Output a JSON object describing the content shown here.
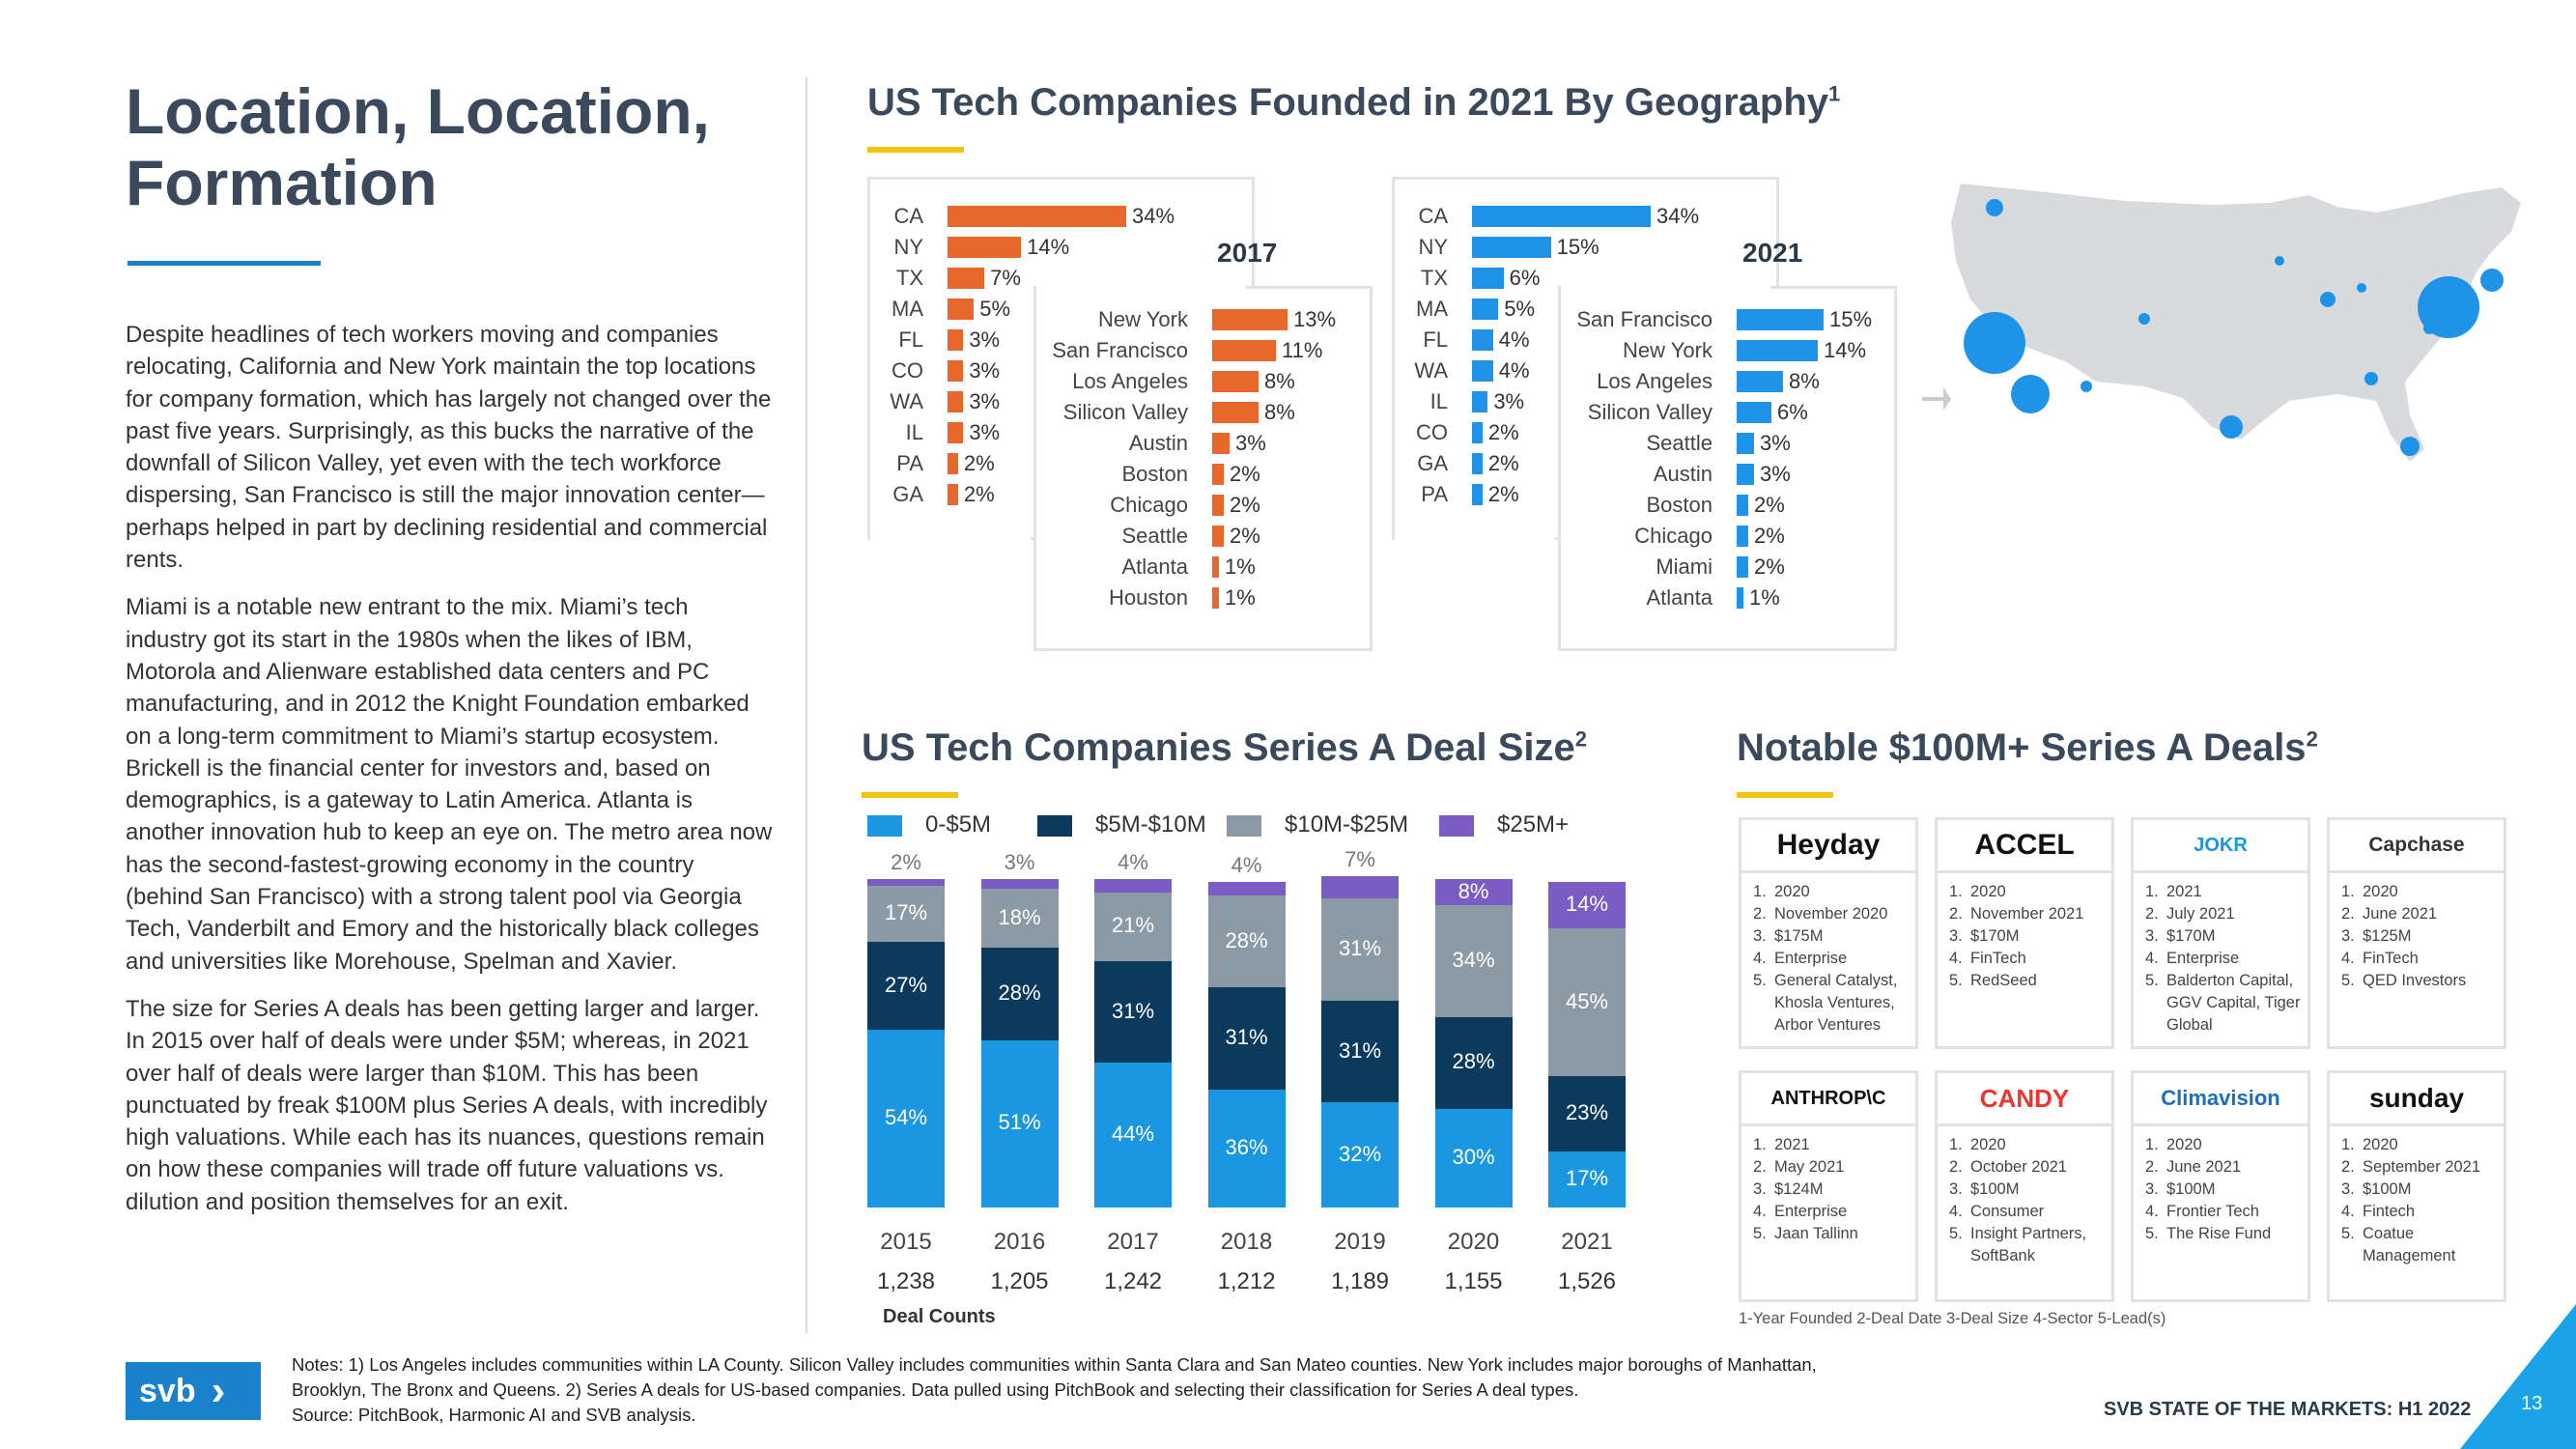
{
  "page": {
    "title": "Location, Location, Formation",
    "paragraphs": [
      "Despite headlines of tech workers moving and companies relocating, California and New York maintain the top locations for company formation, which has largely not changed over the past five years. Surprisingly, as this bucks the narrative of the downfall of Silicon Valley, yet even with the tech workforce dispersing, San Francisco is still the major innovation center—perhaps helped in part by declining residential and commercial rents.",
      "Miami is a notable new entrant to the mix. Miami’s tech industry got its start in the 1980s when the likes of IBM, Motorola and Alienware established data centers and PC manufacturing, and in 2012 the Knight Foundation embarked on a long-term commitment to Miami’s startup ecosystem. Brickell is the financial center for investors and, based on demographics, is a gateway to Latin America. Atlanta is another innovation hub to keep an eye on. The metro area now has the second-fastest-growing economy in the country (behind San Francisco) with a strong talent pool via Georgia Tech, Vanderbilt and Emory and the historically black colleges and universities like Morehouse, Spelman and Xavier.",
      "The size for Series A deals has been getting larger and larger. In 2015 over half of deals were under $5M; whereas, in 2021 over half of deals were larger than $10M. This has been punctuated by freak $100M plus Series A deals, with incredibly high valuations. While each has its nuances, questions remain on how these companies will trade off future valuations vs. dilution and position themselves for an exit."
    ],
    "footer_notes": [
      "Notes: 1) Los Angeles includes communities within LA County. Silicon Valley includes communities within Santa Clara and San Mateo counties. New York includes major boroughs of Manhattan,",
      "Brooklyn, The Bronx and Queens. 2) Series A deals for US-based companies. Data pulled using PitchBook and selecting their classification for Series A deal types.",
      "Source: PitchBook, Harmonic AI and SVB analysis."
    ],
    "brand": "SVB STATE OF THE MARKETS: H1 2022",
    "logo_text": "svb",
    "logo_chevron": "›",
    "page_number": "13"
  },
  "geo": {
    "title": "US Tech Companies Founded in 2021 By Geography",
    "title_sup": "1",
    "panels": [
      {
        "year": "2017",
        "color": "#e8672a",
        "states": [
          {
            "label": "CA",
            "value": 34,
            "text": "34%"
          },
          {
            "label": "NY",
            "value": 14,
            "text": "14%"
          },
          {
            "label": "TX",
            "value": 7,
            "text": "7%"
          },
          {
            "label": "MA",
            "value": 5,
            "text": "5%"
          },
          {
            "label": "FL",
            "value": 3,
            "text": "3%"
          },
          {
            "label": "CO",
            "value": 3,
            "text": "3%"
          },
          {
            "label": "WA",
            "value": 3,
            "text": "3%"
          },
          {
            "label": "IL",
            "value": 3,
            "text": "3%"
          },
          {
            "label": "PA",
            "value": 2,
            "text": "2%"
          },
          {
            "label": "GA",
            "value": 2,
            "text": "2%"
          }
        ],
        "cities": [
          {
            "label": "New York",
            "value": 13,
            "text": "13%"
          },
          {
            "label": "San Francisco",
            "value": 11,
            "text": "11%"
          },
          {
            "label": "Los Angeles",
            "value": 8,
            "text": "8%"
          },
          {
            "label": "Silicon Valley",
            "value": 8,
            "text": "8%"
          },
          {
            "label": "Austin",
            "value": 3,
            "text": "3%"
          },
          {
            "label": "Boston",
            "value": 2,
            "text": "2%"
          },
          {
            "label": "Chicago",
            "value": 2,
            "text": "2%"
          },
          {
            "label": "Seattle",
            "value": 2,
            "text": "2%"
          },
          {
            "label": "Atlanta",
            "value": 1,
            "text": "1%"
          },
          {
            "label": "Houston",
            "value": 1,
            "text": "1%"
          }
        ]
      },
      {
        "year": "2021",
        "color": "#1f93e8",
        "states": [
          {
            "label": "CA",
            "value": 34,
            "text": "34%"
          },
          {
            "label": "NY",
            "value": 15,
            "text": "15%"
          },
          {
            "label": "TX",
            "value": 6,
            "text": "6%"
          },
          {
            "label": "MA",
            "value": 5,
            "text": "5%"
          },
          {
            "label": "FL",
            "value": 4,
            "text": "4%"
          },
          {
            "label": "WA",
            "value": 4,
            "text": "4%"
          },
          {
            "label": "IL",
            "value": 3,
            "text": "3%"
          },
          {
            "label": "CO",
            "value": 2,
            "text": "2%"
          },
          {
            "label": "GA",
            "value": 2,
            "text": "2%"
          },
          {
            "label": "PA",
            "value": 2,
            "text": "2%"
          }
        ],
        "cities": [
          {
            "label": "San Francisco",
            "value": 15,
            "text": "15%"
          },
          {
            "label": "New York",
            "value": 14,
            "text": "14%"
          },
          {
            "label": "Los Angeles",
            "value": 8,
            "text": "8%"
          },
          {
            "label": "Silicon Valley",
            "value": 6,
            "text": "6%"
          },
          {
            "label": "Seattle",
            "value": 3,
            "text": "3%"
          },
          {
            "label": "Austin",
            "value": 3,
            "text": "3%"
          },
          {
            "label": "Boston",
            "value": 2,
            "text": "2%"
          },
          {
            "label": "Chicago",
            "value": 2,
            "text": "2%"
          },
          {
            "label": "Miami",
            "value": 2,
            "text": "2%"
          },
          {
            "label": "Atlanta",
            "value": 1,
            "text": "1%"
          }
        ]
      }
    ]
  },
  "chart_data": {
    "type": "bar",
    "stacked": true,
    "title": "US Tech Companies Series A Deal Size",
    "title_sup": "2",
    "categories": [
      "2015",
      "2016",
      "2017",
      "2018",
      "2019",
      "2020",
      "2021"
    ],
    "series": [
      {
        "name": "0-$5M",
        "color": "#1a97e0",
        "values": [
          54,
          51,
          44,
          36,
          32,
          30,
          17
        ]
      },
      {
        "name": "$5M-$10M",
        "color": "#0b3a5c",
        "values": [
          27,
          28,
          31,
          31,
          31,
          28,
          23
        ]
      },
      {
        "name": "$10M-$25M",
        "color": "#8c9aa6",
        "values": [
          17,
          18,
          21,
          28,
          31,
          34,
          45
        ]
      },
      {
        "name": "$25M+",
        "color": "#7b5cc4",
        "values": [
          2,
          3,
          4,
          4,
          7,
          8,
          14
        ]
      }
    ],
    "deal_counts_label": "Deal Counts",
    "deal_counts": [
      "1,238",
      "1,205",
      "1,242",
      "1,212",
      "1,189",
      "1,155",
      "1,526"
    ],
    "ylim": [
      0,
      100
    ]
  },
  "deals": {
    "title": "Notable $100M+ Series A Deals",
    "title_sup": "2",
    "legend": "1-Year Founded 2-Deal Date 3-Deal Size 4-Sector 5-Lead(s)",
    "cards": [
      {
        "name": "Heyday",
        "lines": [
          "2020",
          "November 2020",
          "$175M",
          "Enterprise",
          "General Catalyst, Khosla Ventures, Arbor Ventures"
        ]
      },
      {
        "name": "ACCEL",
        "lines": [
          "2020",
          "November 2021",
          "$170M",
          "FinTech",
          "RedSeed"
        ]
      },
      {
        "name": "JOKR",
        "lines": [
          "2021",
          "July 2021",
          "$170M",
          "Enterprise",
          "Balderton Capital, GGV Capital, Tiger Global"
        ]
      },
      {
        "name": "Capchase",
        "lines": [
          "2020",
          "June 2021",
          "$125M",
          "FinTech",
          "QED Investors"
        ]
      },
      {
        "name": "ANTHROP\\C",
        "lines": [
          "2021",
          "May 2021",
          "$124M",
          "Enterprise",
          "Jaan Tallinn"
        ]
      },
      {
        "name": "CANDY",
        "lines": [
          "2020",
          "October 2021",
          "$100M",
          "Consumer",
          "Insight Partners, SoftBank"
        ]
      },
      {
        "name": "Climavision",
        "lines": [
          "2020",
          "June 2021",
          "$100M",
          "Frontier Tech",
          "The Rise Fund"
        ]
      },
      {
        "name": "sunday",
        "lines": [
          "2020",
          "September 2021",
          "$100M",
          "Fintech",
          "Coatue Management"
        ]
      }
    ]
  }
}
